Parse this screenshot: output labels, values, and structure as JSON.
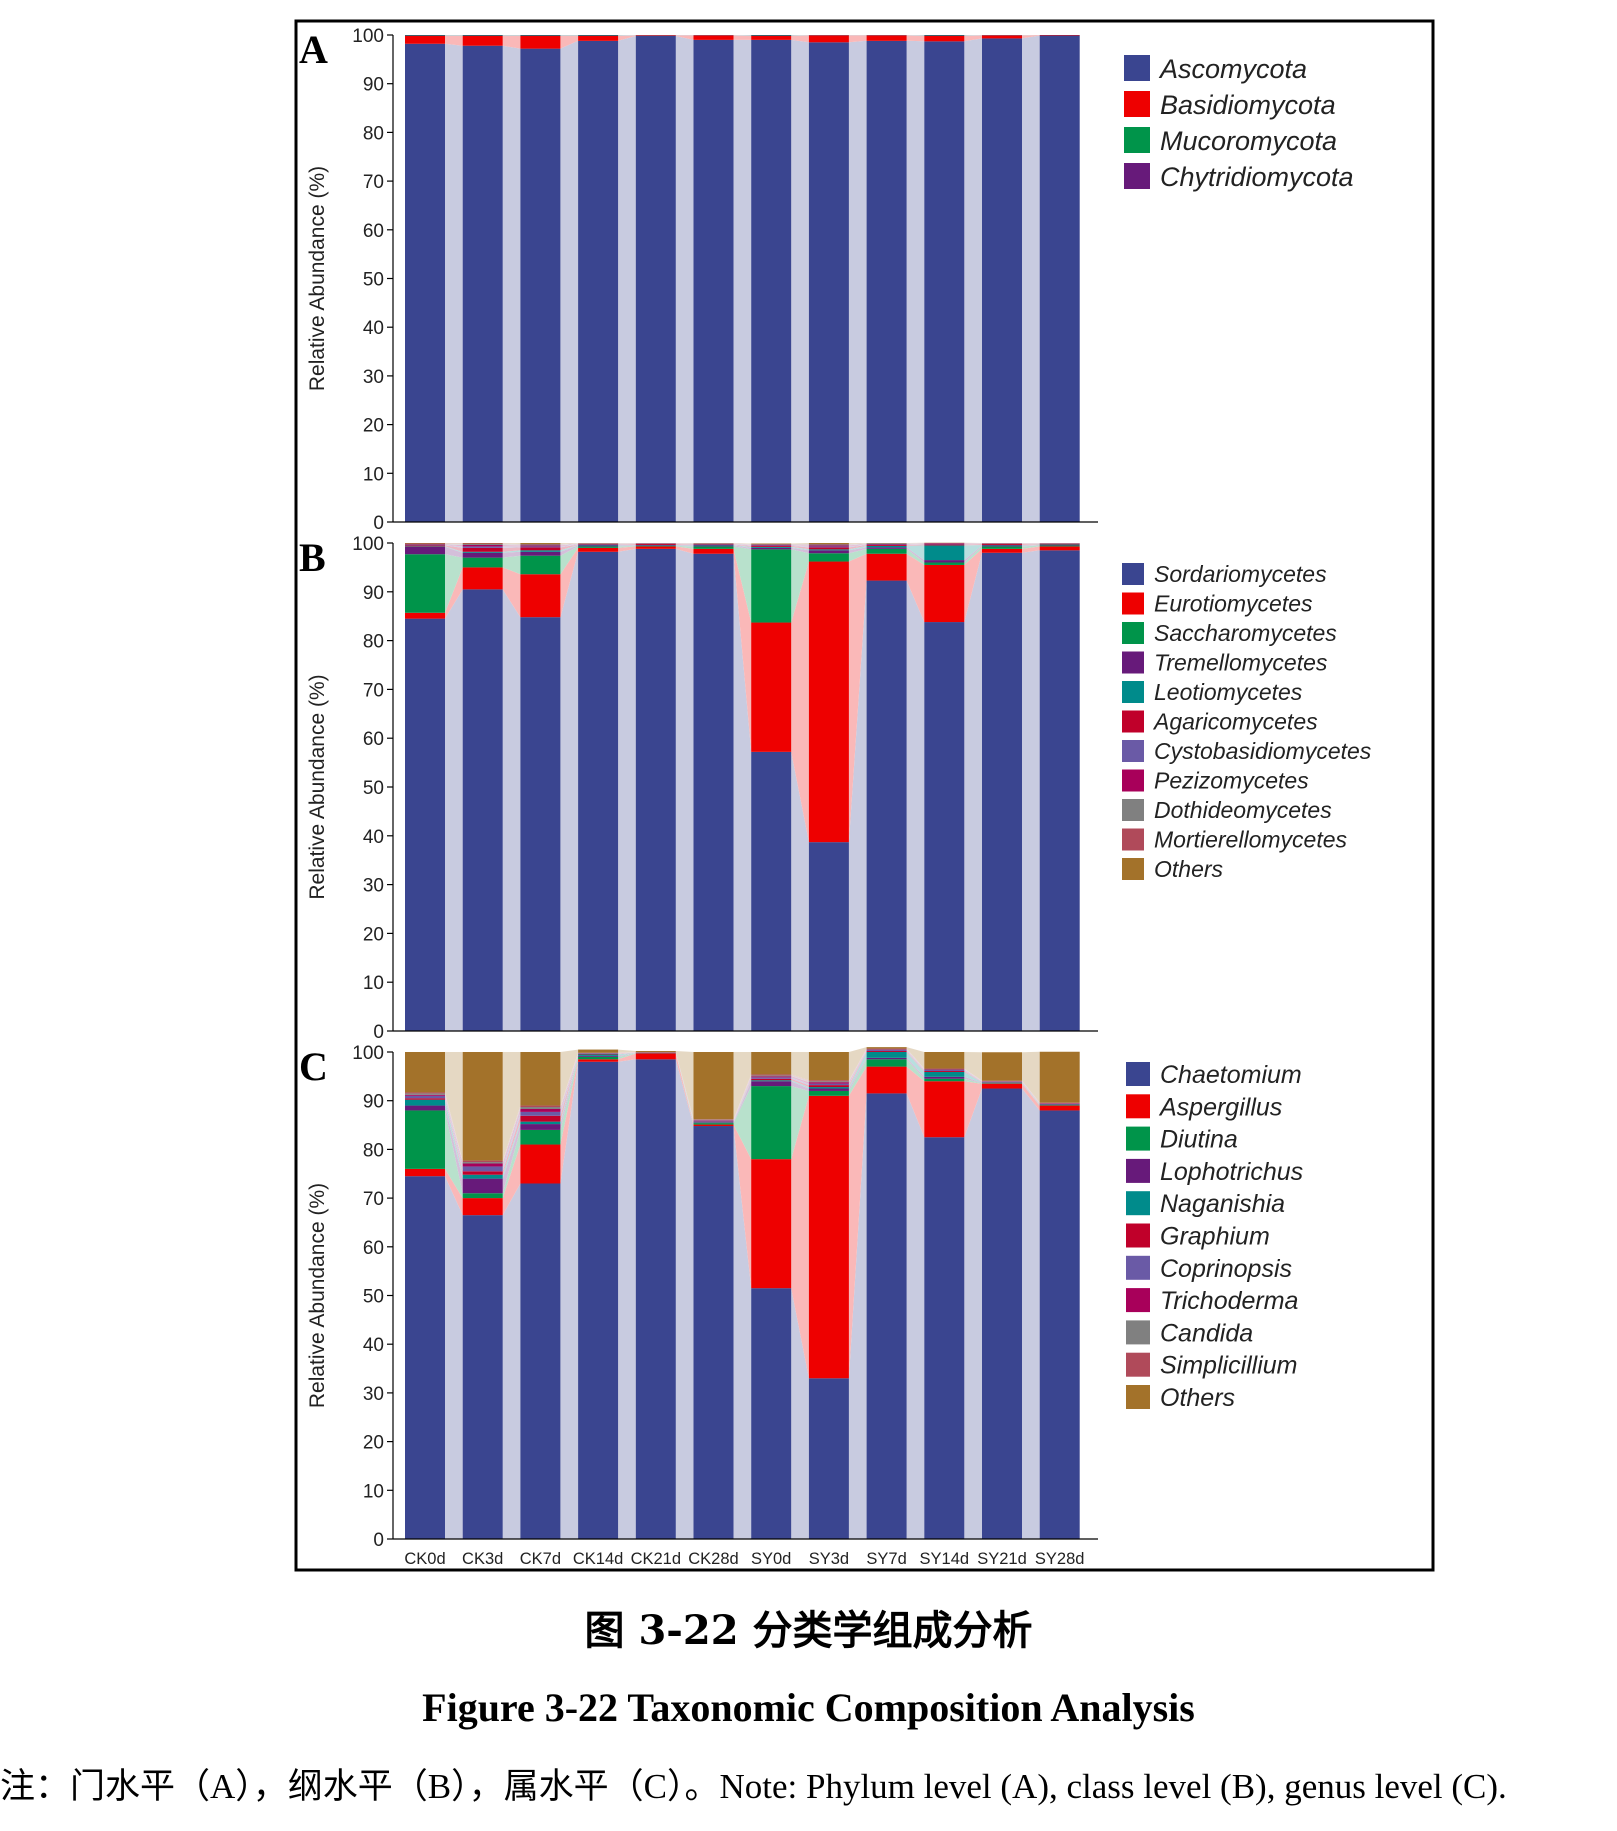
{
  "caption_cn": "图 3-22  分类学组成分析",
  "caption_en": "Figure 3-22 Taxonomic Composition Analysis",
  "note": "注：门水平（A），纲水平（B），属水平（C）。Note: Phylum level (A), class level (B), genus level (C).",
  "chart_data": [
    {
      "type": "bar",
      "stacked": true,
      "panel_label": "A",
      "ylabel": "Relative Abundance (%)",
      "ylim": [
        0,
        100
      ],
      "yticks": [
        0,
        10,
        20,
        30,
        40,
        50,
        60,
        70,
        80,
        90,
        100
      ],
      "categories": [
        "CK0d",
        "CK3d",
        "CK7d",
        "CK14d",
        "CK21d",
        "CK28d",
        "SY0d",
        "SY3d",
        "SY7d",
        "SY14d",
        "SY21d",
        "SY28d"
      ],
      "show_xticklabels": false,
      "legend_position": "right",
      "series": [
        {
          "name": "Ascomycota",
          "color": "#3a4590",
          "values": [
            98.2,
            97.8,
            97.2,
            98.8,
            99.8,
            99.0,
            99.0,
            98.5,
            98.8,
            98.7,
            99.3,
            99.9
          ]
        },
        {
          "name": "Basidiomycota",
          "color": "#ee0000",
          "values": [
            1.6,
            2.0,
            2.6,
            1.0,
            0.1,
            0.9,
            0.8,
            1.4,
            1.1,
            1.1,
            0.6,
            0.1
          ]
        },
        {
          "name": "Mucoromycota",
          "color": "#00944a",
          "values": [
            0.1,
            0.1,
            0.1,
            0.1,
            0.05,
            0.05,
            0.1,
            0.05,
            0.05,
            0.1,
            0.05,
            0.0
          ]
        },
        {
          "name": "Chytridiomycota",
          "color": "#671a7a",
          "values": [
            0.1,
            0.1,
            0.1,
            0.1,
            0.05,
            0.05,
            0.1,
            0.05,
            0.05,
            0.1,
            0.05,
            0.0
          ]
        }
      ]
    },
    {
      "type": "bar",
      "stacked": true,
      "panel_label": "B",
      "ylabel": "Relative Abundance (%)",
      "ylim": [
        0,
        100
      ],
      "yticks": [
        0,
        10,
        20,
        30,
        40,
        50,
        60,
        70,
        80,
        90,
        100
      ],
      "categories": [
        "CK0d",
        "CK3d",
        "CK7d",
        "CK14d",
        "CK21d",
        "CK28d",
        "SY0d",
        "SY3d",
        "SY7d",
        "SY14d",
        "SY21d",
        "SY28d"
      ],
      "show_xticklabels": false,
      "legend_position": "right",
      "series": [
        {
          "name": "Sordariomycetes",
          "color": "#3a4590",
          "values": [
            84.5,
            90.5,
            84.8,
            98.2,
            98.8,
            97.8,
            57.2,
            38.7,
            92.3,
            83.8,
            98.0,
            98.5
          ]
        },
        {
          "name": "Eurotiomycetes",
          "color": "#ee0000",
          "values": [
            1.2,
            4.5,
            8.8,
            0.8,
            0.5,
            1.0,
            26.5,
            57.5,
            5.5,
            11.7,
            0.8,
            0.8
          ]
        },
        {
          "name": "Saccharomycetes",
          "color": "#00944a",
          "values": [
            12.0,
            2.0,
            3.8,
            0.3,
            0.1,
            0.5,
            15.0,
            1.7,
            1.0,
            0.5,
            0.5,
            0.2
          ]
        },
        {
          "name": "Tremellomycetes",
          "color": "#671a7a",
          "values": [
            1.5,
            1.0,
            0.8,
            0.2,
            0.1,
            0.2,
            0.3,
            0.6,
            0.3,
            0.5,
            0.2,
            0.1
          ]
        },
        {
          "name": "Leotiomycetes",
          "color": "#008b8b",
          "values": [
            0.1,
            0.2,
            0.3,
            0.1,
            0.1,
            0.1,
            0.2,
            0.2,
            0.3,
            3.0,
            0.1,
            0.1
          ]
        },
        {
          "name": "Agaricomycetes",
          "color": "#c0002a",
          "values": [
            0.2,
            0.8,
            0.6,
            0.1,
            0.2,
            0.1,
            0.2,
            0.4,
            0.2,
            0.2,
            0.2,
            0.1
          ]
        },
        {
          "name": "Cystobasidiomycetes",
          "color": "#6a5aa6",
          "values": [
            0.1,
            0.3,
            0.2,
            0.1,
            0.05,
            0.1,
            0.1,
            0.2,
            0.1,
            0.1,
            0.05,
            0.05
          ]
        },
        {
          "name": "Pezizomycetes",
          "color": "#a8005a",
          "values": [
            0.1,
            0.3,
            0.2,
            0.05,
            0.05,
            0.05,
            0.1,
            0.2,
            0.1,
            0.1,
            0.05,
            0.05
          ]
        },
        {
          "name": "Dothideomycetes",
          "color": "#808080",
          "values": [
            0.1,
            0.2,
            0.2,
            0.05,
            0.05,
            0.05,
            0.1,
            0.2,
            0.1,
            0.05,
            0.05,
            0.05
          ]
        },
        {
          "name": "Mortierellomycetes",
          "color": "#b04a5a",
          "values": [
            0.1,
            0.1,
            0.1,
            0.05,
            0.02,
            0.05,
            0.1,
            0.1,
            0.05,
            0.05,
            0.02,
            0.02
          ]
        },
        {
          "name": "Others",
          "color": "#a3722a",
          "values": [
            0.1,
            0.1,
            0.2,
            0.05,
            0.03,
            0.05,
            0.1,
            0.2,
            0.05,
            0.05,
            0.03,
            0.03
          ]
        }
      ]
    },
    {
      "type": "bar",
      "stacked": true,
      "panel_label": "C",
      "ylabel": "Relative Abundance (%)",
      "ylim": [
        0,
        100
      ],
      "yticks": [
        0,
        10,
        20,
        30,
        40,
        50,
        60,
        70,
        80,
        90,
        100
      ],
      "categories": [
        "CK0d",
        "CK3d",
        "CK7d",
        "CK14d",
        "CK21d",
        "CK28d",
        "SY0d",
        "SY3d",
        "SY7d",
        "SY14d",
        "SY21d",
        "SY28d"
      ],
      "show_xticklabels": true,
      "legend_position": "right",
      "series": [
        {
          "name": "Chaetomium",
          "color": "#3a4590",
          "values": [
            74.5,
            66.5,
            73.0,
            98.0,
            98.5,
            84.8,
            51.5,
            33.0,
            91.5,
            82.5,
            92.5,
            88.0
          ]
        },
        {
          "name": "Aspergillus",
          "color": "#ee0000",
          "values": [
            1.5,
            3.5,
            8.0,
            0.5,
            1.2,
            0.3,
            26.5,
            58.0,
            5.5,
            11.5,
            1.0,
            1.0
          ]
        },
        {
          "name": "Diutina",
          "color": "#00944a",
          "values": [
            12.0,
            1.0,
            3.0,
            0.5,
            0.05,
            0.3,
            15.0,
            1.0,
            1.5,
            0.5,
            0.1,
            0.1
          ]
        },
        {
          "name": "Lophotrichus",
          "color": "#671a7a",
          "values": [
            1.0,
            3.0,
            1.2,
            0.2,
            0.05,
            0.1,
            1.0,
            0.5,
            0.3,
            0.4,
            0.1,
            0.1
          ]
        },
        {
          "name": "Naganishia",
          "color": "#008b8b",
          "values": [
            1.2,
            0.8,
            0.5,
            0.3,
            0.05,
            0.1,
            0.2,
            0.3,
            1.2,
            1.0,
            0.1,
            0.1
          ]
        },
        {
          "name": "Graphium",
          "color": "#c0002a",
          "values": [
            0.3,
            0.7,
            1.2,
            0.1,
            0.05,
            0.1,
            0.3,
            0.4,
            0.2,
            0.2,
            0.1,
            0.1
          ]
        },
        {
          "name": "Coprinopsis",
          "color": "#6a5aa6",
          "values": [
            0.5,
            1.0,
            0.8,
            0.1,
            0.02,
            0.2,
            0.3,
            0.3,
            0.2,
            0.2,
            0.05,
            0.05
          ]
        },
        {
          "name": "Trichoderma",
          "color": "#a8005a",
          "values": [
            0.2,
            0.6,
            0.6,
            0.05,
            0.02,
            0.1,
            0.2,
            0.3,
            0.1,
            0.1,
            0.05,
            0.05
          ]
        },
        {
          "name": "Candida",
          "color": "#808080",
          "values": [
            0.3,
            0.3,
            0.4,
            0.05,
            0.02,
            0.1,
            0.2,
            0.2,
            0.1,
            0.1,
            0.05,
            0.05
          ]
        },
        {
          "name": "Simplicillium",
          "color": "#b04a5a",
          "values": [
            0.2,
            0.3,
            0.3,
            0.05,
            0.02,
            0.1,
            0.2,
            0.2,
            0.1,
            0.1,
            0.05,
            0.05
          ]
        },
        {
          "name": "Others",
          "color": "#a3722a",
          "values": [
            8.3,
            22.3,
            11.0,
            0.65,
            0.22,
            13.8,
            4.6,
            5.8,
            0.3,
            3.4,
            5.85,
            10.45
          ]
        }
      ]
    }
  ]
}
